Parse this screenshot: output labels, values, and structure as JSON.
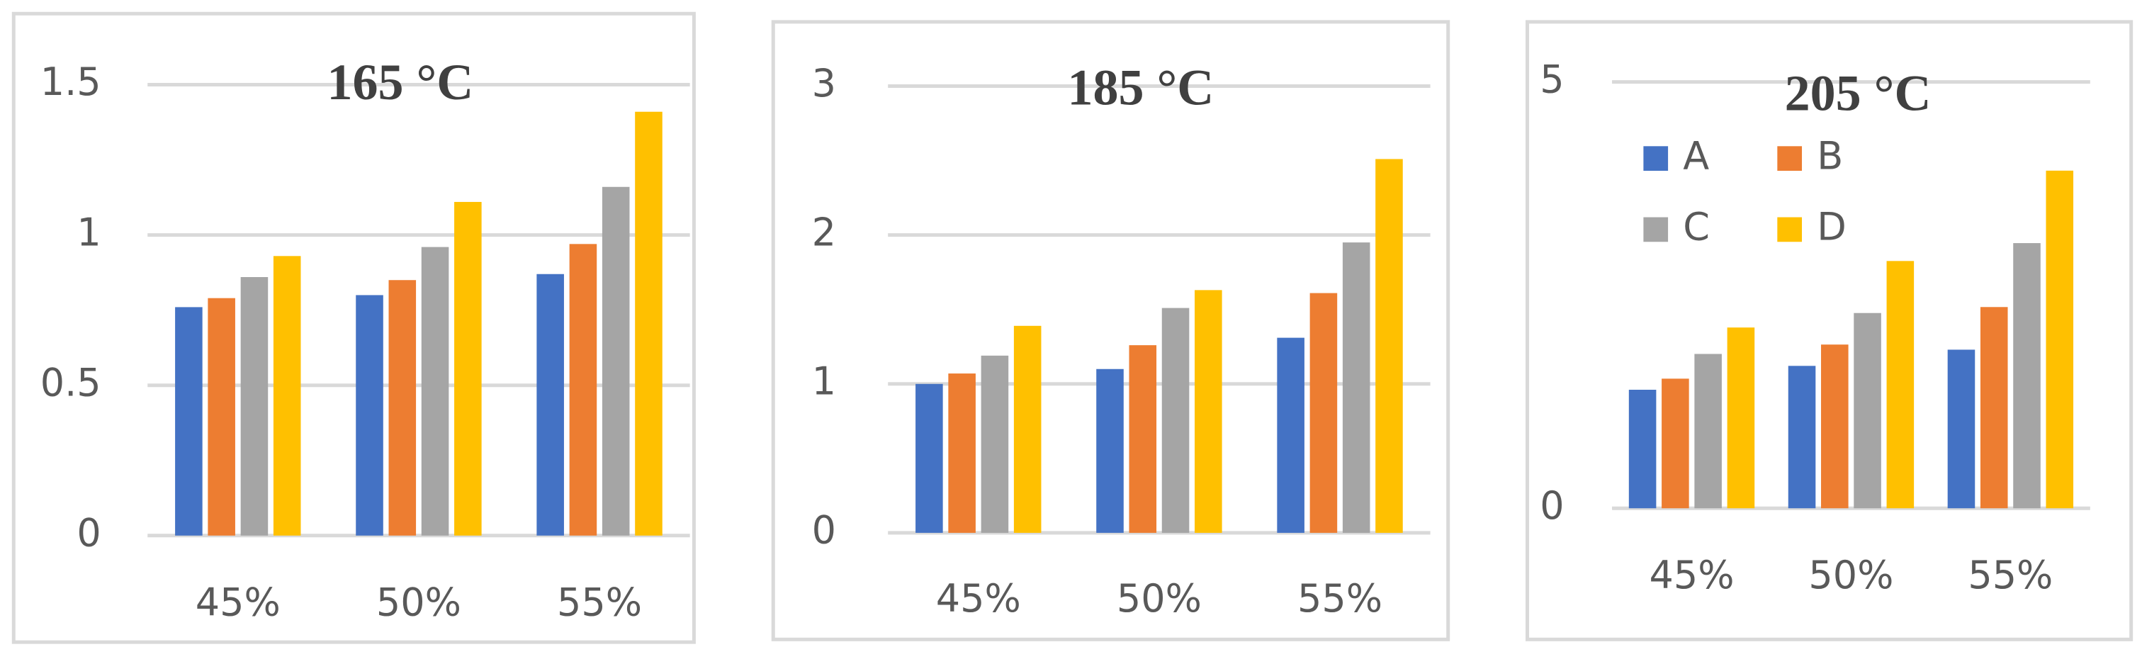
{
  "chart_data": [
    {
      "type": "bar",
      "title": "165 °C",
      "categories": [
        "45%",
        "50%",
        "55%"
      ],
      "series": [
        {
          "color": "#4472c4",
          "values": [
            0.76,
            0.8,
            0.87
          ]
        },
        {
          "color": "#ed7d31",
          "values": [
            0.79,
            0.85,
            0.97
          ]
        },
        {
          "color": "#a5a5a5",
          "values": [
            0.86,
            0.96,
            1.16
          ]
        },
        {
          "color": "#ffc000",
          "values": [
            0.93,
            1.11,
            1.41
          ]
        }
      ],
      "ylim": [
        0,
        1.5
      ],
      "yticks": [
        0,
        0.5,
        1,
        1.5
      ],
      "grid": true
    },
    {
      "type": "bar",
      "title": "185 °C",
      "categories": [
        "45%",
        "50%",
        "55%"
      ],
      "series": [
        {
          "color": "#4472c4",
          "values": [
            1.0,
            1.1,
            1.31
          ]
        },
        {
          "color": "#ed7d31",
          "values": [
            1.07,
            1.26,
            1.61
          ]
        },
        {
          "color": "#a5a5a5",
          "values": [
            1.19,
            1.51,
            1.95
          ]
        },
        {
          "color": "#ffc000",
          "values": [
            1.39,
            1.63,
            2.51
          ]
        }
      ],
      "ylim": [
        0,
        3
      ],
      "yticks": [
        0,
        1,
        2,
        3
      ],
      "grid": true
    },
    {
      "type": "bar",
      "title": "205 °C",
      "categories": [
        "45%",
        "50%",
        "55%"
      ],
      "series": [
        {
          "name": "A",
          "color": "#4472c4",
          "values": [
            1.39,
            1.67,
            1.86
          ]
        },
        {
          "name": "B",
          "color": "#ed7d31",
          "values": [
            1.52,
            1.92,
            2.36
          ]
        },
        {
          "name": "C",
          "color": "#a5a5a5",
          "values": [
            1.81,
            2.29,
            3.11
          ]
        },
        {
          "name": "D",
          "color": "#ffc000",
          "values": [
            2.12,
            2.9,
            3.96
          ]
        }
      ],
      "ylim": [
        0,
        5
      ],
      "yticks": [
        0,
        5
      ],
      "grid": true,
      "legend": "top-left"
    }
  ]
}
